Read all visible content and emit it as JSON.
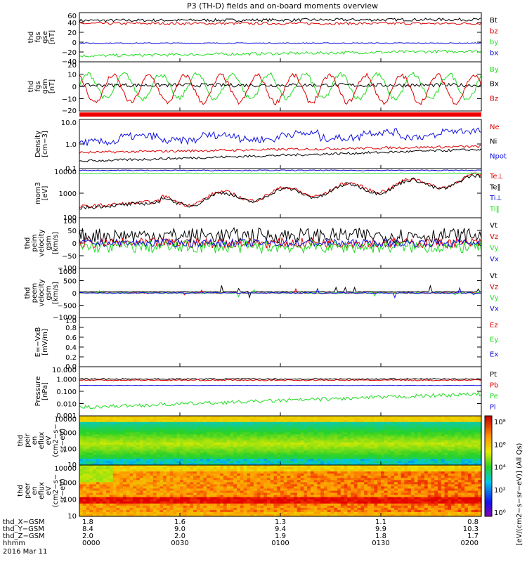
{
  "title": "P3 (TH-D) fields and on-board moments overview",
  "colors": {
    "black": "#000000",
    "red": "#dd0000",
    "green": "#22dd22",
    "blue": "#1010dd",
    "flagbar": "#ee0000"
  },
  "chart_data": [
    {
      "type": "line",
      "ylabel": [
        "thd",
        "fgs",
        "gse",
        "[nT]"
      ],
      "ylim": [
        -40,
        60
      ],
      "yticks": [
        "60",
        "40",
        "20",
        "0",
        "−20",
        "−40"
      ],
      "grid": false,
      "series": [
        {
          "name": "Bt",
          "color": "black",
          "shape": "ramp",
          "base": 44,
          "end": 46,
          "noise": 6
        },
        {
          "name": "bz",
          "color": "red",
          "shape": "ramp",
          "base": 38,
          "end": 38,
          "noise": 5
        },
        {
          "name": "by",
          "color": "green",
          "shape": "ramp",
          "base": -28,
          "end": -18,
          "noise": 6
        },
        {
          "name": "bx",
          "color": "blue",
          "shape": "flat",
          "base": -2,
          "noise": 2
        }
      ]
    },
    {
      "type": "line",
      "ylabel": [
        "thd",
        "fgs",
        "gsm",
        "[nT]"
      ],
      "ylim": [
        -20,
        20
      ],
      "yticks": [
        "20",
        "10",
        "0",
        "−10",
        "−20"
      ],
      "grid": false,
      "series": [
        {
          "name": "By",
          "color": "green",
          "shape": "wave",
          "base": 0,
          "noise": 10
        },
        {
          "name": "Bx",
          "color": "black",
          "shape": "flat",
          "base": 1,
          "noise": 3
        },
        {
          "name": "Bz",
          "color": "red",
          "shape": "wave",
          "base": -2,
          "noise": 11
        }
      ]
    },
    {
      "type": "line",
      "ylabel": [
        "Density",
        "[cm−3]"
      ],
      "yscale": "log",
      "ylim": [
        0.1,
        10
      ],
      "yticks": [
        "10.0",
        "1.0",
        "0.1"
      ],
      "grid": false,
      "series": [
        {
          "name": "Ne",
          "color": "red",
          "shape": "ramp",
          "base": 0.45,
          "end": 0.8,
          "noise": 0.1
        },
        {
          "name": "Ni",
          "color": "black",
          "shape": "ramp",
          "base": 0.2,
          "end": 0.6,
          "noise": 0.1
        },
        {
          "name": "Npot",
          "color": "blue",
          "shape": "steps",
          "base": 1.3,
          "end": 2.5,
          "noise": 0.3
        }
      ]
    },
    {
      "type": "line",
      "ylabel": [
        "mom3",
        "[eV]"
      ],
      "yscale": "log",
      "ylim": [
        20,
        10000
      ],
      "yticks": [
        "10000",
        "1000",
        "100"
      ],
      "grid": false,
      "series": [
        {
          "name": "Te⊥",
          "color": "red",
          "shape": "ramp",
          "base": 80,
          "end": 2500,
          "noise": 0.2
        },
        {
          "name": "Te‖",
          "color": "black",
          "shape": "ramp",
          "base": 70,
          "end": 2200,
          "noise": 0.2
        },
        {
          "name": "Ti⊥",
          "color": "blue",
          "shape": "flat",
          "base": 8000,
          "noise": 0.05
        },
        {
          "name": "Ti‖",
          "color": "green",
          "shape": "flat",
          "base": 5500,
          "noise": 0.05
        }
      ]
    },
    {
      "type": "line",
      "ylabel": [
        "thd",
        "peim",
        "velocity",
        "gsm",
        "[km/s]"
      ],
      "ylim": [
        -100,
        100
      ],
      "yticks": [
        "100",
        "50",
        "0",
        "−50",
        "−100"
      ],
      "grid": false,
      "series": [
        {
          "name": "Vt",
          "color": "black",
          "shape": "noisy",
          "base": 30,
          "noise": 30
        },
        {
          "name": "Vz",
          "color": "red",
          "shape": "noisy",
          "base": 0,
          "noise": 20
        },
        {
          "name": "Vy",
          "color": "green",
          "shape": "noisy",
          "base": -15,
          "noise": 25
        },
        {
          "name": "Vx",
          "color": "blue",
          "shape": "noisy",
          "base": 0,
          "noise": 15
        }
      ]
    },
    {
      "type": "line",
      "ylabel": [
        "thd",
        "peem",
        "velocity",
        "gsm",
        "[km/s]"
      ],
      "ylim": [
        -1000,
        1000
      ],
      "yticks": [
        "1000",
        "500",
        "0",
        "−500",
        "−1000"
      ],
      "grid": false,
      "series": [
        {
          "name": "Vt",
          "color": "black",
          "shape": "spiky",
          "base": 50,
          "noise": 80
        },
        {
          "name": "Vz",
          "color": "red",
          "shape": "spiky",
          "base": 0,
          "noise": 60
        },
        {
          "name": "Vy",
          "color": "green",
          "shape": "spiky",
          "base": 0,
          "noise": 60
        },
        {
          "name": "Vx",
          "color": "blue",
          "shape": "spiky",
          "base": 0,
          "noise": 60
        }
      ]
    },
    {
      "type": "line",
      "ylabel": [
        "E=−VxB",
        "[mV/m]"
      ],
      "ylim": [
        0,
        1
      ],
      "yticks": [
        "1.0",
        "0.8",
        "0.6",
        "0.4",
        "0.2",
        "0.0"
      ],
      "grid": false,
      "series": [
        {
          "name": "Ez",
          "color": "red",
          "shape": "none"
        },
        {
          "name": "Ey",
          "color": "green",
          "shape": "none"
        },
        {
          "name": "Ex",
          "color": "blue",
          "shape": "none"
        }
      ]
    },
    {
      "type": "line",
      "ylabel": [
        "Pressure",
        "[nPa]"
      ],
      "yscale": "log",
      "ylim": [
        0.001,
        10
      ],
      "yticks": [
        "10.000",
        "1.000",
        "0.100",
        "0.010",
        "0.001"
      ],
      "grid": false,
      "series": [
        {
          "name": "Pt",
          "color": "black",
          "shape": "flat",
          "base": 1.0,
          "noise": 0.1
        },
        {
          "name": "Pb",
          "color": "red",
          "shape": "flat",
          "base": 0.8,
          "noise": 0.1
        },
        {
          "name": "Pe",
          "color": "green",
          "shape": "ramp",
          "base": 0.005,
          "end": 0.06,
          "noise": 0.3
        },
        {
          "name": "Pi",
          "color": "blue",
          "shape": "flat",
          "base": 0.3,
          "noise": 0.03
        }
      ]
    },
    {
      "type": "heatmap",
      "ylabel": [
        "thd",
        "peir",
        "en",
        "eflux",
        "eV",
        "(cm2−s−",
        "sr−eV)"
      ],
      "yscale": "log",
      "ylim": [
        5,
        30000
      ],
      "yticks": [
        "10000",
        "1000",
        "100",
        "10"
      ],
      "colormap": "rainbow",
      "variant": "ion"
    },
    {
      "type": "heatmap",
      "ylabel": [
        "thd",
        "peer",
        "en",
        "eflux",
        "eV",
        "(cm2−s−",
        "sr−eV)"
      ],
      "yscale": "log",
      "ylim": [
        5,
        30000
      ],
      "yticks": [
        "10000",
        "1000",
        "100",
        "10"
      ],
      "colormap": "rainbow",
      "variant": "electron"
    }
  ],
  "colorbar": {
    "ticks": [
      "10⁸",
      "10⁶",
      "10⁴",
      "10²",
      "10⁰"
    ],
    "label": "[eV/(cm2−s−sr−eV)] (All Qs)"
  },
  "xaxis": {
    "tick_values": [
      "0000",
      "0030",
      "0100",
      "0130",
      "0200"
    ],
    "rows": [
      {
        "label": "thd_X−GSM",
        "values": [
          "1.8",
          "1.6",
          "1.3",
          "1.1",
          "0.8"
        ]
      },
      {
        "label": "thd_Y−GSM",
        "values": [
          "8.4",
          "9.0",
          "9.4",
          "9.9",
          "10.3"
        ]
      },
      {
        "label": "thd_Z−GSM",
        "values": [
          "2.0",
          "2.0",
          "1.9",
          "1.8",
          "1.7"
        ]
      },
      {
        "label": "hhmm",
        "values": [
          "0000",
          "0030",
          "0100",
          "0130",
          "0200"
        ]
      }
    ],
    "date": "2016 Mar 11"
  }
}
